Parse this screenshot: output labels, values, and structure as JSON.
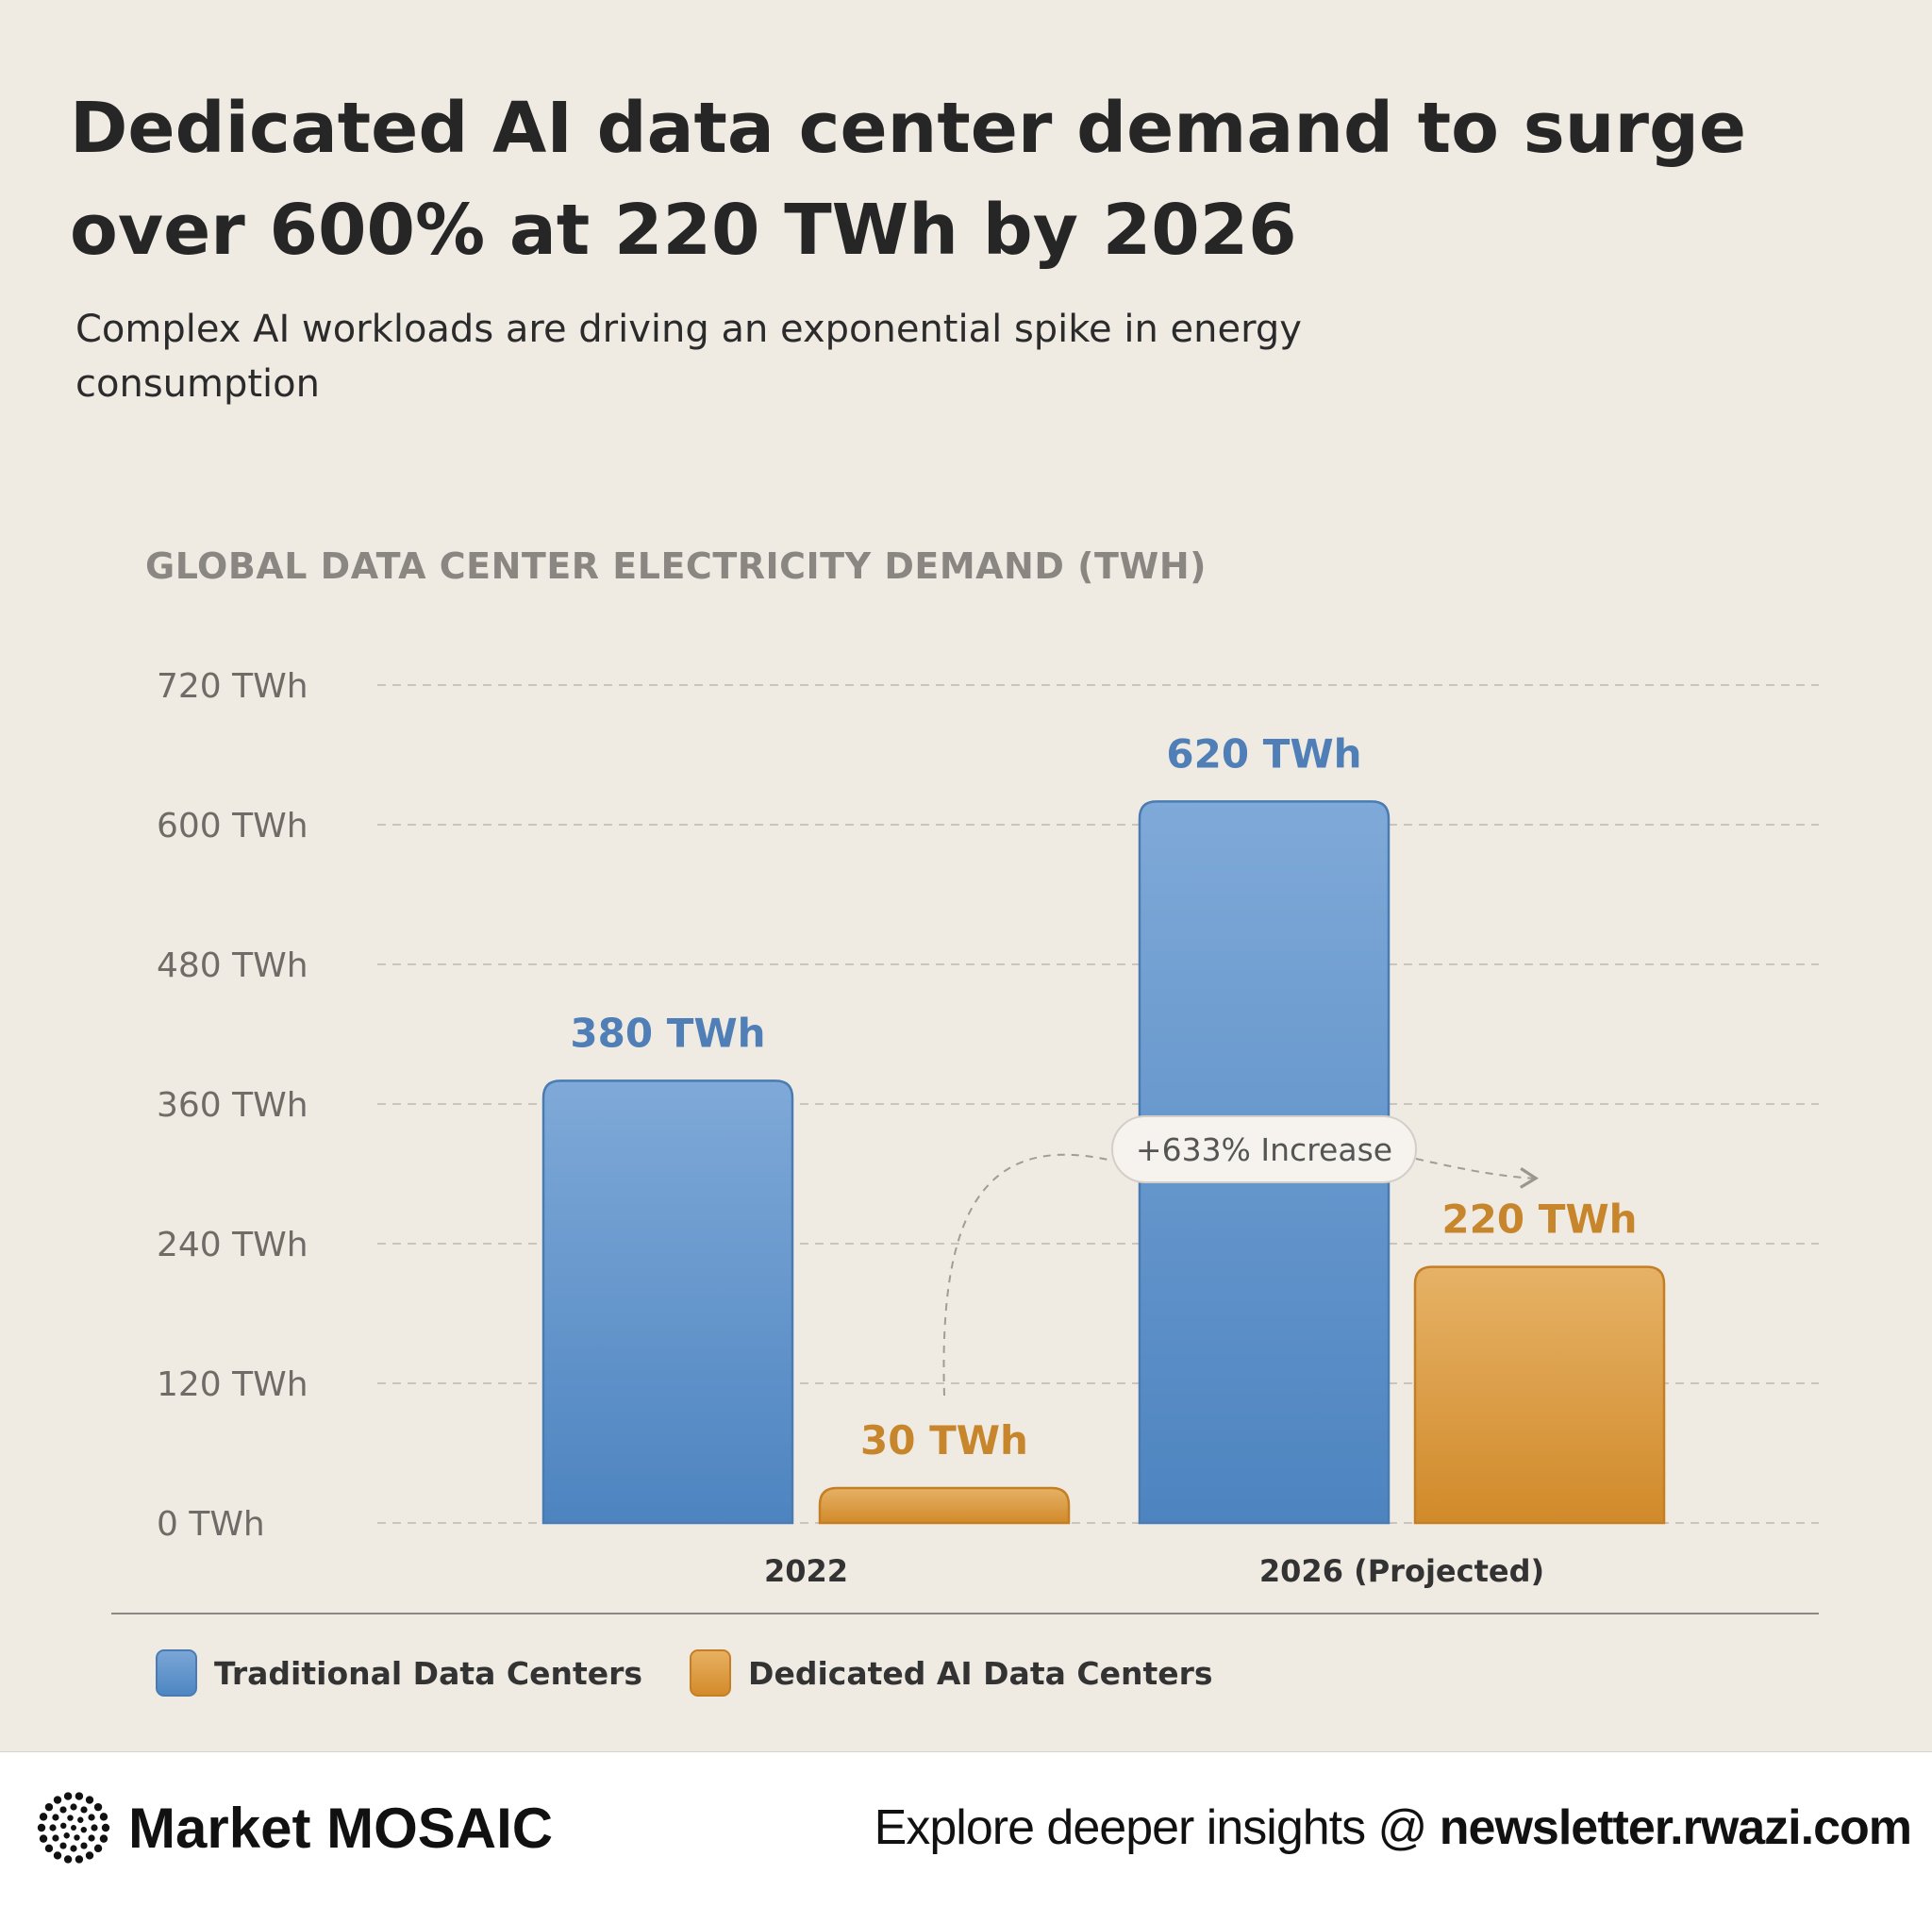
{
  "header": {
    "title": "Dedicated AI data center demand to surge over 600% at 220 TWh by 2026",
    "subtitle": "Complex AI workloads are driving an exponential spike in energy consumption"
  },
  "chart_data": {
    "type": "bar",
    "title": "GLOBAL DATA CENTER ELECTRICITY DEMAND (TWH)",
    "xlabel": "",
    "ylabel": "",
    "ylim": [
      0,
      720
    ],
    "y_ticks": [
      0,
      120,
      240,
      360,
      480,
      600,
      720
    ],
    "y_tick_labels": [
      "0 TWh",
      "120 TWh",
      "240 TWh",
      "360 TWh",
      "480 TWh",
      "600 TWh",
      "720 TWh"
    ],
    "grid": true,
    "categories": [
      "2022",
      "2026 (Projected)"
    ],
    "series": [
      {
        "name": "Traditional Data Centers",
        "values": [
          380,
          620
        ],
        "labels": [
          "380 TWh",
          "620 TWh"
        ],
        "color": "#5a8fc8"
      },
      {
        "name": "Dedicated AI Data Centers",
        "values": [
          30,
          220
        ],
        "labels": [
          "30 TWh",
          "220 TWh"
        ],
        "color": "#dc9a3c"
      }
    ],
    "annotation": {
      "text": "+633% Increase",
      "from": "2022 Dedicated AI Data Centers",
      "to": "2026 (Projected) Dedicated AI Data Centers"
    },
    "legend_position": "bottom-left"
  },
  "colors": {
    "traditional": "#5a8fc8",
    "traditional_text": "#4f7fb6",
    "ai": "#dc9a3c",
    "ai_text": "#c8862c",
    "background": "#efebe3"
  },
  "footer": {
    "brand": "Market MOSAIC",
    "cta_prefix": "Explore deeper insights @ ",
    "cta_url": "newsletter.rwazi.com",
    "logo_icon": "dotted-circle-logo-icon"
  }
}
